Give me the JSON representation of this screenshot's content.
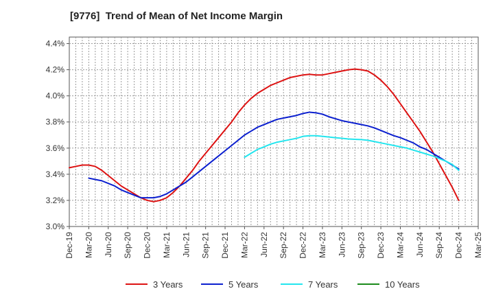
{
  "chart_data": {
    "type": "line",
    "title": "[9776]  Trend of Mean of Net Income Margin",
    "xlabel": "",
    "ylabel": "",
    "ylim": [
      3.0,
      4.45
    ],
    "y_ticks": [
      "3.0%",
      "3.2%",
      "3.4%",
      "3.6%",
      "3.8%",
      "4.0%",
      "4.2%",
      "4.4%"
    ],
    "x_ticks": [
      "Dec-19",
      "Mar-20",
      "Jun-20",
      "Sep-20",
      "Dec-20",
      "Mar-21",
      "Jun-21",
      "Sep-21",
      "Dec-21",
      "Mar-22",
      "Jun-22",
      "Sep-22",
      "Dec-22",
      "Mar-23",
      "Jun-23",
      "Sep-23",
      "Dec-23",
      "Mar-24",
      "Jun-24",
      "Sep-24",
      "Dec-24",
      "Mar-25"
    ],
    "grid": true,
    "legend_position": "bottom",
    "series": [
      {
        "name": "3 Years",
        "color": "#dd1111",
        "points": [
          [
            "Dec-19",
            3.45
          ],
          [
            "Jan-20",
            3.46
          ],
          [
            "Feb-20",
            3.47
          ],
          [
            "Mar-20",
            3.47
          ],
          [
            "Apr-20",
            3.46
          ],
          [
            "May-20",
            3.43
          ],
          [
            "Jun-20",
            3.39
          ],
          [
            "Jul-20",
            3.35
          ],
          [
            "Aug-20",
            3.31
          ],
          [
            "Sep-20",
            3.28
          ],
          [
            "Oct-20",
            3.25
          ],
          [
            "Nov-20",
            3.22
          ],
          [
            "Dec-20",
            3.2
          ],
          [
            "Jan-21",
            3.19
          ],
          [
            "Feb-21",
            3.2
          ],
          [
            "Mar-21",
            3.22
          ],
          [
            "Apr-21",
            3.26
          ],
          [
            "May-21",
            3.31
          ],
          [
            "Jun-21",
            3.37
          ],
          [
            "Jul-21",
            3.43
          ],
          [
            "Aug-21",
            3.5
          ],
          [
            "Sep-21",
            3.56
          ],
          [
            "Oct-21",
            3.62
          ],
          [
            "Nov-21",
            3.68
          ],
          [
            "Dec-21",
            3.74
          ],
          [
            "Jan-22",
            3.8
          ],
          [
            "Feb-22",
            3.87
          ],
          [
            "Mar-22",
            3.93
          ],
          [
            "Apr-22",
            3.98
          ],
          [
            "May-22",
            4.02
          ],
          [
            "Jun-22",
            4.05
          ],
          [
            "Jul-22",
            4.08
          ],
          [
            "Aug-22",
            4.1
          ],
          [
            "Sep-22",
            4.12
          ],
          [
            "Oct-22",
            4.14
          ],
          [
            "Nov-22",
            4.15
          ],
          [
            "Dec-22",
            4.16
          ],
          [
            "Jan-23",
            4.165
          ],
          [
            "Feb-23",
            4.16
          ],
          [
            "Mar-23",
            4.16
          ],
          [
            "Apr-23",
            4.17
          ],
          [
            "May-23",
            4.18
          ],
          [
            "Jun-23",
            4.19
          ],
          [
            "Jul-23",
            4.2
          ],
          [
            "Aug-23",
            4.205
          ],
          [
            "Sep-23",
            4.2
          ],
          [
            "Oct-23",
            4.19
          ],
          [
            "Nov-23",
            4.16
          ],
          [
            "Dec-23",
            4.12
          ],
          [
            "Jan-24",
            4.07
          ],
          [
            "Feb-24",
            4.01
          ],
          [
            "Mar-24",
            3.94
          ],
          [
            "Apr-24",
            3.87
          ],
          [
            "May-24",
            3.8
          ],
          [
            "Jun-24",
            3.73
          ],
          [
            "Jul-24",
            3.65
          ],
          [
            "Aug-24",
            3.57
          ],
          [
            "Sep-24",
            3.48
          ],
          [
            "Oct-24",
            3.39
          ],
          [
            "Nov-24",
            3.3
          ],
          [
            "Dec-24",
            3.2
          ]
        ]
      },
      {
        "name": "5 Years",
        "color": "#0b1fcf",
        "points": [
          [
            "Mar-20",
            3.37
          ],
          [
            "Apr-20",
            3.36
          ],
          [
            "May-20",
            3.35
          ],
          [
            "Jun-20",
            3.33
          ],
          [
            "Jul-20",
            3.31
          ],
          [
            "Aug-20",
            3.28
          ],
          [
            "Sep-20",
            3.26
          ],
          [
            "Oct-20",
            3.24
          ],
          [
            "Nov-20",
            3.22
          ],
          [
            "Dec-20",
            3.22
          ],
          [
            "Jan-21",
            3.22
          ],
          [
            "Feb-21",
            3.23
          ],
          [
            "Mar-21",
            3.25
          ],
          [
            "Apr-21",
            3.28
          ],
          [
            "May-21",
            3.31
          ],
          [
            "Jun-21",
            3.34
          ],
          [
            "Jul-21",
            3.38
          ],
          [
            "Aug-21",
            3.42
          ],
          [
            "Sep-21",
            3.46
          ],
          [
            "Oct-21",
            3.5
          ],
          [
            "Nov-21",
            3.54
          ],
          [
            "Dec-21",
            3.58
          ],
          [
            "Jan-22",
            3.62
          ],
          [
            "Feb-22",
            3.66
          ],
          [
            "Mar-22",
            3.7
          ],
          [
            "Apr-22",
            3.73
          ],
          [
            "May-22",
            3.76
          ],
          [
            "Jun-22",
            3.78
          ],
          [
            "Jul-22",
            3.8
          ],
          [
            "Aug-22",
            3.82
          ],
          [
            "Sep-22",
            3.83
          ],
          [
            "Oct-22",
            3.84
          ],
          [
            "Nov-22",
            3.85
          ],
          [
            "Dec-22",
            3.865
          ],
          [
            "Jan-23",
            3.875
          ],
          [
            "Feb-23",
            3.87
          ],
          [
            "Mar-23",
            3.86
          ],
          [
            "Apr-23",
            3.84
          ],
          [
            "May-23",
            3.825
          ],
          [
            "Jun-23",
            3.81
          ],
          [
            "Jul-23",
            3.8
          ],
          [
            "Aug-23",
            3.79
          ],
          [
            "Sep-23",
            3.78
          ],
          [
            "Oct-23",
            3.77
          ],
          [
            "Nov-23",
            3.755
          ],
          [
            "Dec-23",
            3.735
          ],
          [
            "Jan-24",
            3.715
          ],
          [
            "Feb-24",
            3.695
          ],
          [
            "Mar-24",
            3.68
          ],
          [
            "Apr-24",
            3.66
          ],
          [
            "May-24",
            3.64
          ],
          [
            "Jun-24",
            3.61
          ],
          [
            "Jul-24",
            3.59
          ],
          [
            "Aug-24",
            3.56
          ],
          [
            "Sep-24",
            3.53
          ],
          [
            "Oct-24",
            3.5
          ],
          [
            "Nov-24",
            3.47
          ],
          [
            "Dec-24",
            3.44
          ]
        ]
      },
      {
        "name": "7 Years",
        "color": "#22e5ee",
        "points": [
          [
            "Mar-22",
            3.53
          ],
          [
            "Apr-22",
            3.56
          ],
          [
            "May-22",
            3.59
          ],
          [
            "Jun-22",
            3.61
          ],
          [
            "Jul-22",
            3.63
          ],
          [
            "Aug-22",
            3.645
          ],
          [
            "Sep-22",
            3.655
          ],
          [
            "Oct-22",
            3.665
          ],
          [
            "Nov-22",
            3.675
          ],
          [
            "Dec-22",
            3.69
          ],
          [
            "Jan-23",
            3.695
          ],
          [
            "Feb-23",
            3.695
          ],
          [
            "Mar-23",
            3.69
          ],
          [
            "Apr-23",
            3.685
          ],
          [
            "May-23",
            3.68
          ],
          [
            "Jun-23",
            3.675
          ],
          [
            "Jul-23",
            3.67
          ],
          [
            "Aug-23",
            3.667
          ],
          [
            "Sep-23",
            3.665
          ],
          [
            "Oct-23",
            3.66
          ],
          [
            "Nov-23",
            3.65
          ],
          [
            "Dec-23",
            3.64
          ],
          [
            "Jan-24",
            3.63
          ],
          [
            "Feb-24",
            3.62
          ],
          [
            "Mar-24",
            3.61
          ],
          [
            "Apr-24",
            3.6
          ],
          [
            "May-24",
            3.585
          ],
          [
            "Jun-24",
            3.57
          ],
          [
            "Jul-24",
            3.555
          ],
          [
            "Aug-24",
            3.54
          ],
          [
            "Sep-24",
            3.52
          ],
          [
            "Oct-24",
            3.5
          ],
          [
            "Nov-24",
            3.475
          ],
          [
            "Dec-24",
            3.43
          ]
        ]
      },
      {
        "name": "10 Years",
        "color": "#1a8a1a",
        "points": []
      }
    ]
  }
}
